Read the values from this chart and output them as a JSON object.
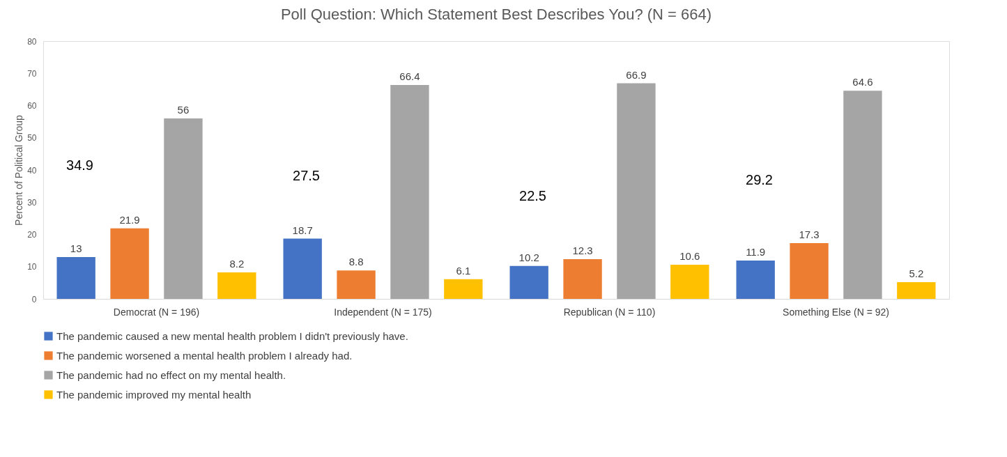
{
  "chart_data": {
    "type": "bar",
    "title": "Poll Question: Which Statement Best Describes You? (N = 664)",
    "ylabel": "Percent of Political Group",
    "categories": [
      "Democrat (N = 196)",
      "Independent (N = 175)",
      "Republican (N = 110)",
      "Something Else (N = 92)"
    ],
    "series": [
      {
        "name": "The pandemic caused a new mental health problem I didn't previously have.",
        "color": "#4472c4",
        "values": [
          13,
          18.7,
          10.2,
          11.9
        ]
      },
      {
        "name": "The pandemic worsened a mental health problem I already had.",
        "color": "#ed7d31",
        "values": [
          21.9,
          8.8,
          12.3,
          17.3
        ]
      },
      {
        "name": "The pandemic had no effect on my mental health.",
        "color": "#a5a5a5",
        "values": [
          56,
          66.4,
          66.9,
          64.6
        ]
      },
      {
        "name": "The pandemic improved my mental health",
        "color": "#ffc000",
        "values": [
          8.2,
          6.1,
          10.6,
          5.2
        ]
      }
    ],
    "ylim": [
      0,
      80
    ],
    "yticks": [
      0,
      10,
      20,
      30,
      40,
      50,
      60,
      70,
      80
    ],
    "grid": false,
    "data_labels": true,
    "legend": "bottom",
    "annotations": [
      "34.9",
      "27.5",
      "22.5",
      "29.2"
    ]
  }
}
